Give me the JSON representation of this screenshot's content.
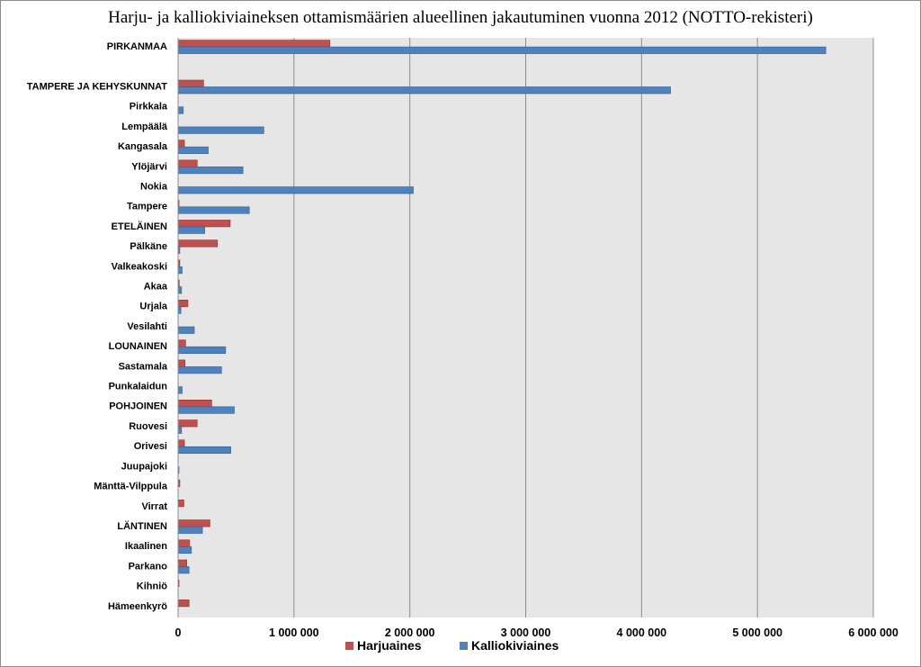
{
  "chart_data": {
    "type": "bar",
    "orientation": "horizontal",
    "title": "Harju- ja kalliokiviaineksen ottamismäärien alueellinen jakautuminen vuonna 2012 (NOTTO-rekisteri)",
    "xlim": [
      0,
      6000000
    ],
    "xticks": [
      "0",
      "1 000 000",
      "2 000 000",
      "3 000 000",
      "4 000 000",
      "5 000 000",
      "6 000 000"
    ],
    "xtick_values": [
      0,
      1000000,
      2000000,
      3000000,
      4000000,
      5000000,
      6000000
    ],
    "grid": "vertical",
    "legend_position": "bottom",
    "colors": {
      "Harjuaines": "#c0504d",
      "Kalliokiviaines": "#4f81bd",
      "plot_bg": "#e6e6e6",
      "grid": "#8c8c8c"
    },
    "categories": [
      "PIRKANMAA",
      "",
      "TAMPERE JA KEHYSKUNNAT",
      "Pirkkala",
      "Lempäälä",
      "Kangasala",
      "Ylöjärvi",
      "Nokia",
      "Tampere",
      "ETELÄINEN",
      "Pälkäne",
      "Valkeakoski",
      "Akaa",
      "Urjala",
      "Vesilahti",
      "LOUNAINEN",
      "Sastamala",
      "Punkalaidun",
      "POHJOINEN",
      "Ruovesi",
      "Orivesi",
      "Juupajoki",
      "Mänttä-Vilppula",
      "Virrat",
      "LÄNTINEN",
      "Ikaalinen",
      "Parkano",
      "Kihniö",
      "Hämeenkyrö"
    ],
    "series": [
      {
        "name": "Harjuaines",
        "values": [
          1310000,
          0,
          220000,
          0,
          0,
          55000,
          165000,
          0,
          8000,
          450000,
          340000,
          15000,
          10000,
          85000,
          0,
          65000,
          60000,
          0,
          290000,
          165000,
          55000,
          0,
          15000,
          50000,
          275000,
          100000,
          75000,
          8000,
          95000
        ]
      },
      {
        "name": "Kalliokiviaines",
        "values": [
          5590000,
          0,
          4250000,
          45000,
          740000,
          260000,
          560000,
          2030000,
          615000,
          230000,
          15000,
          35000,
          30000,
          25000,
          140000,
          410000,
          375000,
          35000,
          485000,
          30000,
          455000,
          5000,
          0,
          0,
          210000,
          115000,
          95000,
          0,
          0
        ]
      }
    ]
  }
}
